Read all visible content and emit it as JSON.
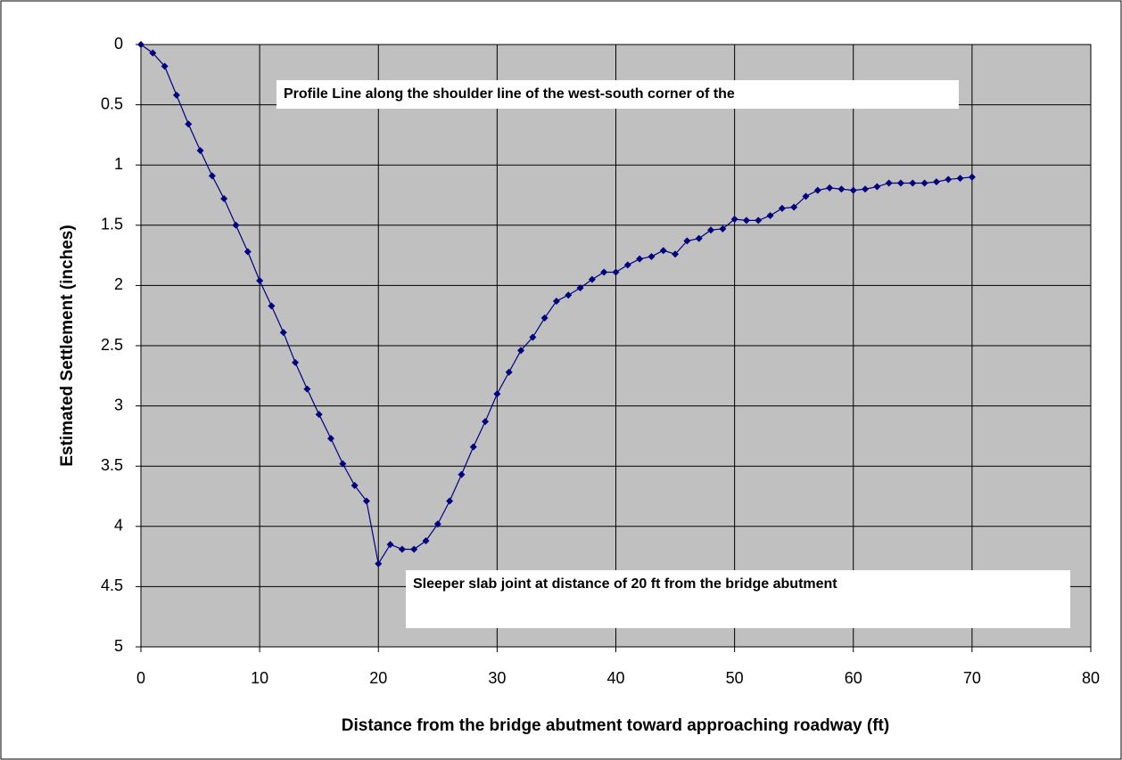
{
  "chart_data": {
    "type": "line",
    "x_label": "Distance from the bridge abutment toward approaching roadway (ft)",
    "y_label": "Estimated Settlement  (inches)",
    "annotations": [
      "Profile Line along the shoulder line of the west-south corner of the",
      "Sleeper slab joint at distance of 20 ft from the bridge abutment"
    ],
    "x": [
      0,
      1,
      2,
      3,
      4,
      5,
      6,
      7,
      8,
      9,
      10,
      11,
      12,
      13,
      14,
      15,
      16,
      17,
      18,
      19,
      20,
      21,
      22,
      23,
      24,
      25,
      26,
      27,
      28,
      29,
      30,
      31,
      32,
      33,
      34,
      35,
      36,
      37,
      38,
      39,
      40,
      41,
      42,
      43,
      44,
      45,
      46,
      47,
      48,
      49,
      50,
      51,
      52,
      53,
      54,
      55,
      56,
      57,
      58,
      59,
      60,
      61,
      62,
      63,
      64,
      65,
      66,
      67,
      68,
      69,
      70
    ],
    "series": [
      {
        "color": "#000080",
        "values": [
          0,
          0.07,
          0.18,
          0.42,
          0.66,
          0.88,
          1.09,
          1.28,
          1.5,
          1.72,
          1.96,
          2.17,
          2.39,
          2.64,
          2.86,
          3.07,
          3.27,
          3.48,
          3.66,
          3.79,
          4.31,
          4.15,
          4.19,
          4.19,
          4.12,
          3.98,
          3.79,
          3.57,
          3.34,
          3.13,
          2.9,
          2.72,
          2.54,
          2.43,
          2.27,
          2.13,
          2.08,
          2.02,
          1.95,
          1.89,
          1.89,
          1.83,
          1.78,
          1.76,
          1.71,
          1.74,
          1.63,
          1.61,
          1.54,
          1.53,
          1.45,
          1.46,
          1.46,
          1.42,
          1.36,
          1.35,
          1.26,
          1.21,
          1.19,
          1.2,
          1.21,
          1.2,
          1.18,
          1.15,
          1.15,
          1.15,
          1.15,
          1.14,
          1.12,
          1.11,
          1.1
        ]
      }
    ],
    "xlim": [
      0,
      80
    ],
    "xticks": [
      0,
      10,
      20,
      30,
      40,
      50,
      60,
      70,
      80
    ],
    "ylim": [
      0,
      5
    ],
    "yticks": [
      0,
      0.5,
      1,
      1.5,
      2,
      2.5,
      3,
      3.5,
      4,
      4.5,
      5
    ],
    "y_inverted": true,
    "grid": true,
    "plot_background": "#c0c0c0"
  }
}
